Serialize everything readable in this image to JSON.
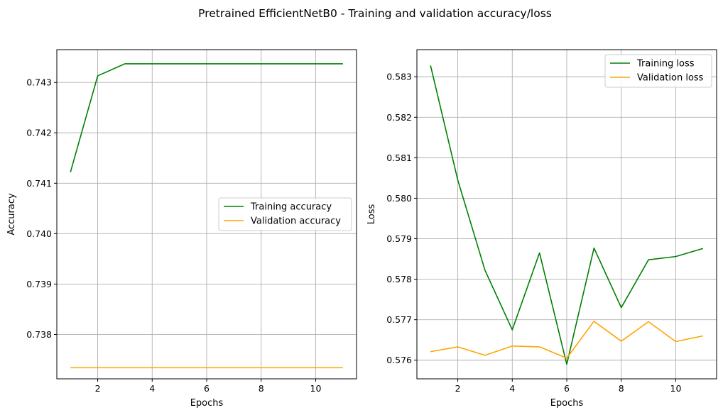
{
  "title": "Pretrained EfficientNetB0 - Training and validation accuracy/loss",
  "chart_data": [
    {
      "type": "line",
      "xlabel": "Epochs",
      "ylabel": "Accuracy",
      "x": [
        1,
        2,
        3,
        4,
        5,
        6,
        7,
        8,
        9,
        10,
        11
      ],
      "xticks": [
        2,
        4,
        6,
        8,
        10
      ],
      "xlim": [
        0.5,
        11.5
      ],
      "ylim": [
        0.73712,
        0.74365
      ],
      "yticks": [
        0.738,
        0.739,
        0.74,
        0.741,
        0.742,
        0.743
      ],
      "ytick_labels": [
        "0.738",
        "0.739",
        "0.740",
        "0.741",
        "0.742",
        "0.743"
      ],
      "grid": true,
      "legend_position": "center-right",
      "series": [
        {
          "name": "Training accuracy",
          "color": "#008000",
          "values": [
            0.74122,
            0.74313,
            0.74337,
            0.74337,
            0.74337,
            0.74337,
            0.74337,
            0.74337,
            0.74337,
            0.74337,
            0.74337
          ]
        },
        {
          "name": "Validation accuracy",
          "color": "#FFA500",
          "values": [
            0.73734,
            0.73734,
            0.73734,
            0.73734,
            0.73734,
            0.73734,
            0.73734,
            0.73734,
            0.73734,
            0.73734,
            0.73734
          ]
        }
      ]
    },
    {
      "type": "line",
      "xlabel": "Epochs",
      "ylabel": "Loss",
      "x": [
        1,
        2,
        3,
        4,
        5,
        6,
        7,
        8,
        9,
        10,
        11
      ],
      "xticks": [
        2,
        4,
        6,
        8,
        10
      ],
      "xlim": [
        0.5,
        11.5
      ],
      "ylim": [
        0.57554,
        0.58367
      ],
      "yticks": [
        0.576,
        0.577,
        0.578,
        0.579,
        0.58,
        0.581,
        0.582,
        0.583
      ],
      "ytick_labels": [
        "0.576",
        "0.577",
        "0.578",
        "0.579",
        "0.580",
        "0.581",
        "0.582",
        "0.583"
      ],
      "grid": true,
      "legend_position": "top-right",
      "series": [
        {
          "name": "Training loss",
          "color": "#008000",
          "values": [
            0.58328,
            0.58045,
            0.57822,
            0.57675,
            0.57865,
            0.5759,
            0.57877,
            0.5773,
            0.57848,
            0.57856,
            0.57876
          ]
        },
        {
          "name": "Validation loss",
          "color": "#FFA500",
          "values": [
            0.57621,
            0.57633,
            0.57612,
            0.57635,
            0.57633,
            0.57605,
            0.57696,
            0.57647,
            0.57695,
            0.57646,
            0.5766
          ]
        }
      ]
    }
  ]
}
